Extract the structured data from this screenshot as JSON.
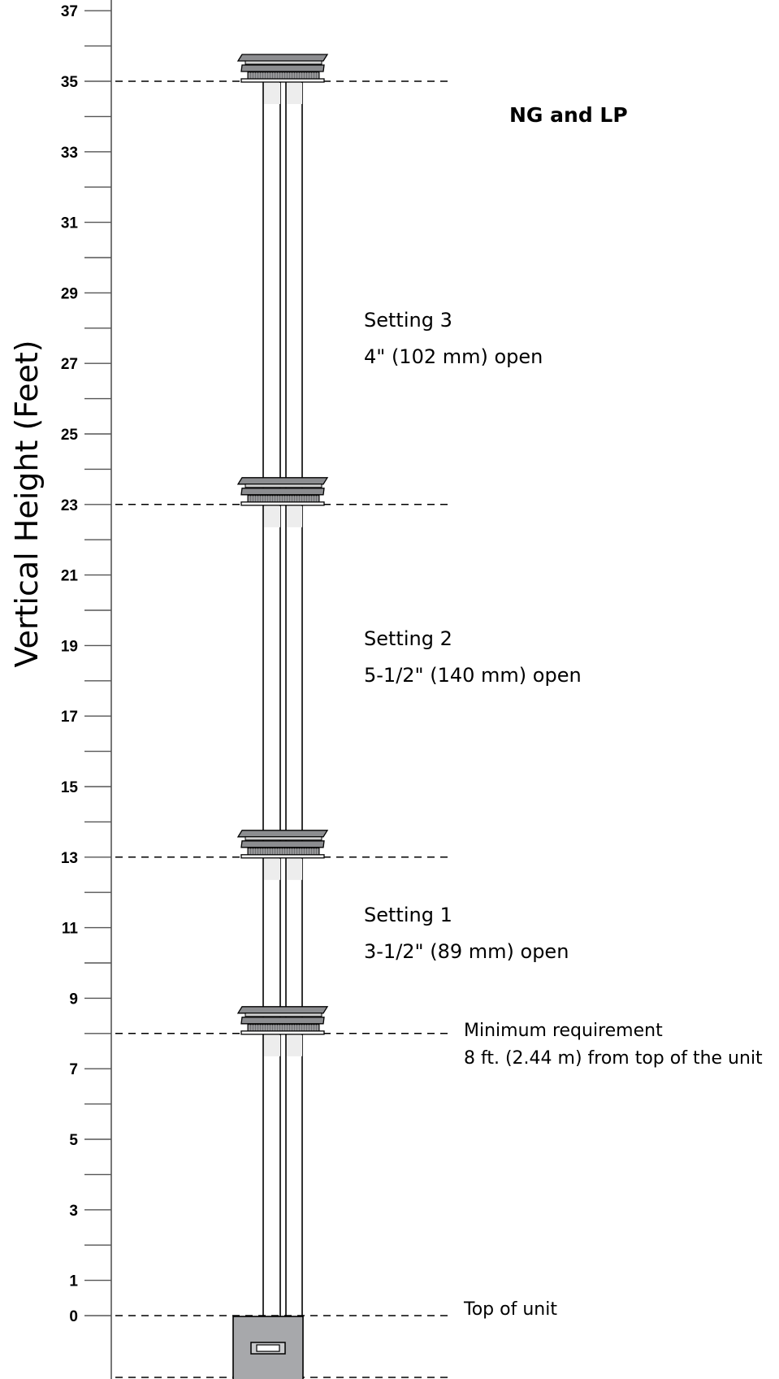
{
  "axis": {
    "label": "Vertical Height (Feet)",
    "min": 0,
    "max": 37,
    "tick_labels": [
      "0",
      "1",
      "3",
      "5",
      "7",
      "9",
      "11",
      "13",
      "15",
      "17",
      "19",
      "21",
      "23",
      "25",
      "27",
      "29",
      "31",
      "33",
      "35",
      "37"
    ]
  },
  "heading": "NG and LP",
  "settings": [
    {
      "name": "Setting 3",
      "opening": "4\" (102 mm) open"
    },
    {
      "name": "Setting 2",
      "opening": "5-1/2\" (140 mm) open"
    },
    {
      "name": "Setting 1",
      "opening": "3-1/2\" (89 mm) open"
    }
  ],
  "minimum": {
    "title": "Minimum requirement",
    "detail": "8 ft. (2.44 m) from top of the unit",
    "height_ft": 8
  },
  "unit_top": {
    "label": "Top of unit",
    "height_ft": 0
  },
  "termination_heights_ft": [
    35,
    23,
    13,
    8
  ]
}
